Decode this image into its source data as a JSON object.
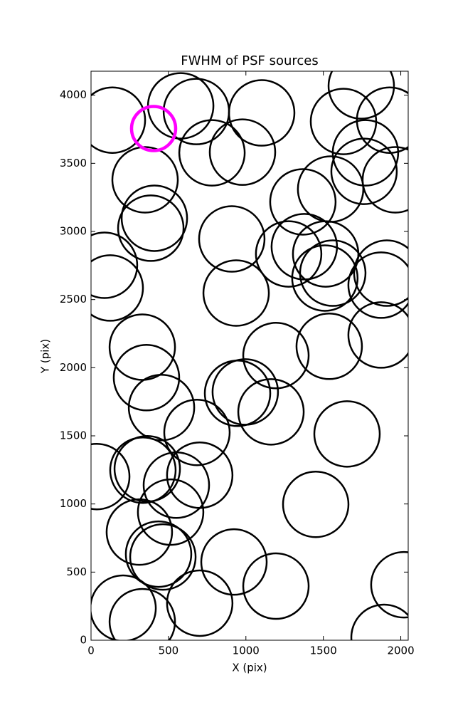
{
  "chart_data": {
    "type": "scatter",
    "title": "FWHM of PSF sources",
    "x_label": "X (pix)",
    "y_label": "Y (pix)",
    "xlim": [
      0,
      2048
    ],
    "ylim": [
      0,
      4176
    ],
    "xticks": [
      0,
      500,
      1000,
      1500,
      2000
    ],
    "yticks": [
      0,
      500,
      1000,
      1500,
      2000,
      2500,
      3000,
      3500,
      4000
    ],
    "marker": "open-circle",
    "series": [
      {
        "color": "#000000",
        "x": [
          138,
          579,
          680,
          1102,
          781,
          978,
          349,
          409,
          386,
          87,
          124,
          909,
          937,
          1368,
          1547,
          1630,
          1745,
          1928,
          1772,
          1763,
          1965,
          1377,
          1276,
          1515,
          1561,
          1510,
          1873,
          1910,
          1873,
          1538,
          1194,
          331,
          358,
          455,
          684,
          946,
          996,
          1162,
          1653,
          37,
          335,
          363,
          702,
          551,
          514,
          312,
          436,
          464,
          1451,
          923,
          1194,
          207,
          331,
          702,
          2020,
          1892
        ],
        "y": [
          3817,
          3922,
          3880,
          3870,
          3577,
          3582,
          3379,
          3097,
          3024,
          2752,
          2585,
          2945,
          2548,
          3217,
          3311,
          3807,
          4068,
          3817,
          3577,
          3441,
          3379,
          2888,
          2835,
          2835,
          2694,
          2658,
          2606,
          2694,
          2240,
          2157,
          2089,
          2151,
          1927,
          1708,
          1525,
          1812,
          1822,
          1676,
          1514,
          1201,
          1248,
          1258,
          1211,
          1138,
          940,
          794,
          632,
          611,
          997,
          574,
          397,
          235,
          136,
          272,
          407,
          21
        ]
      },
      {
        "color": "#ff00ff",
        "x": [
          404
        ],
        "y": [
          3755
        ]
      }
    ]
  }
}
